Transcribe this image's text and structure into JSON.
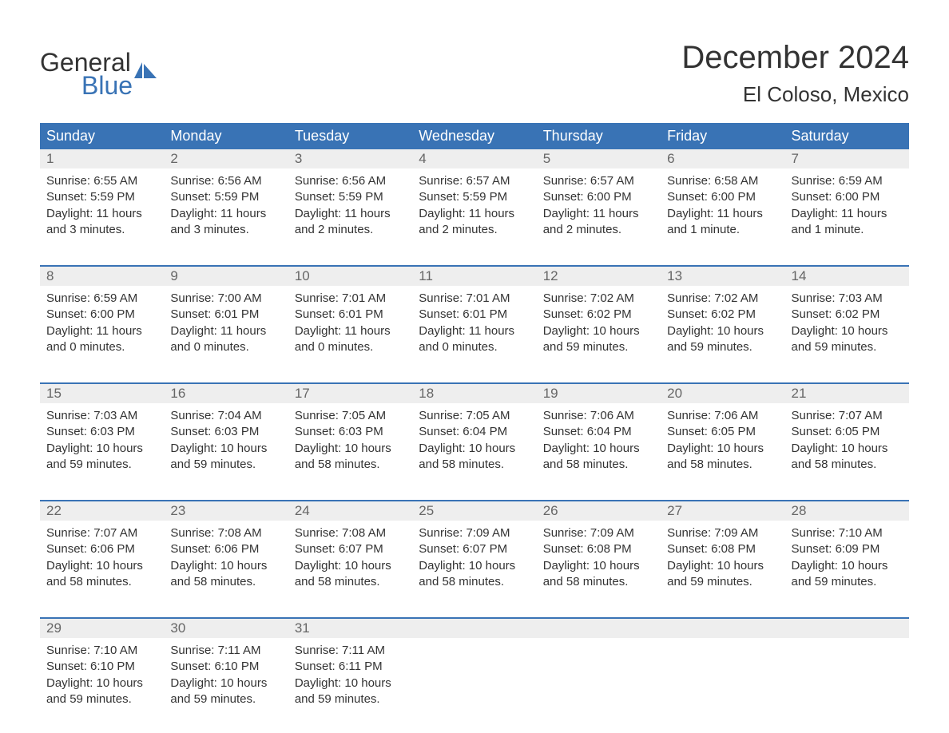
{
  "logo": {
    "text_top": "General",
    "text_bottom": "Blue",
    "top_color": "#333333",
    "bottom_color": "#3973b5",
    "shape_color": "#3973b5"
  },
  "title": "December 2024",
  "location": "El Coloso, Mexico",
  "colors": {
    "header_bg": "#3973b5",
    "header_text": "#ffffff",
    "daynum_bg": "#eeeeee",
    "daynum_text": "#666666",
    "body_text": "#333333",
    "row_border": "#3973b5",
    "background": "#ffffff"
  },
  "fonts": {
    "title_size_pt": 30,
    "location_size_pt": 20,
    "weekday_size_pt": 14,
    "daynum_size_pt": 13,
    "body_size_pt": 11
  },
  "weekdays": [
    "Sunday",
    "Monday",
    "Tuesday",
    "Wednesday",
    "Thursday",
    "Friday",
    "Saturday"
  ],
  "weeks": [
    [
      {
        "day": "1",
        "sunrise": "Sunrise: 6:55 AM",
        "sunset": "Sunset: 5:59 PM",
        "daylight1": "Daylight: 11 hours",
        "daylight2": "and 3 minutes."
      },
      {
        "day": "2",
        "sunrise": "Sunrise: 6:56 AM",
        "sunset": "Sunset: 5:59 PM",
        "daylight1": "Daylight: 11 hours",
        "daylight2": "and 3 minutes."
      },
      {
        "day": "3",
        "sunrise": "Sunrise: 6:56 AM",
        "sunset": "Sunset: 5:59 PM",
        "daylight1": "Daylight: 11 hours",
        "daylight2": "and 2 minutes."
      },
      {
        "day": "4",
        "sunrise": "Sunrise: 6:57 AM",
        "sunset": "Sunset: 5:59 PM",
        "daylight1": "Daylight: 11 hours",
        "daylight2": "and 2 minutes."
      },
      {
        "day": "5",
        "sunrise": "Sunrise: 6:57 AM",
        "sunset": "Sunset: 6:00 PM",
        "daylight1": "Daylight: 11 hours",
        "daylight2": "and 2 minutes."
      },
      {
        "day": "6",
        "sunrise": "Sunrise: 6:58 AM",
        "sunset": "Sunset: 6:00 PM",
        "daylight1": "Daylight: 11 hours",
        "daylight2": "and 1 minute."
      },
      {
        "day": "7",
        "sunrise": "Sunrise: 6:59 AM",
        "sunset": "Sunset: 6:00 PM",
        "daylight1": "Daylight: 11 hours",
        "daylight2": "and 1 minute."
      }
    ],
    [
      {
        "day": "8",
        "sunrise": "Sunrise: 6:59 AM",
        "sunset": "Sunset: 6:00 PM",
        "daylight1": "Daylight: 11 hours",
        "daylight2": "and 0 minutes."
      },
      {
        "day": "9",
        "sunrise": "Sunrise: 7:00 AM",
        "sunset": "Sunset: 6:01 PM",
        "daylight1": "Daylight: 11 hours",
        "daylight2": "and 0 minutes."
      },
      {
        "day": "10",
        "sunrise": "Sunrise: 7:01 AM",
        "sunset": "Sunset: 6:01 PM",
        "daylight1": "Daylight: 11 hours",
        "daylight2": "and 0 minutes."
      },
      {
        "day": "11",
        "sunrise": "Sunrise: 7:01 AM",
        "sunset": "Sunset: 6:01 PM",
        "daylight1": "Daylight: 11 hours",
        "daylight2": "and 0 minutes."
      },
      {
        "day": "12",
        "sunrise": "Sunrise: 7:02 AM",
        "sunset": "Sunset: 6:02 PM",
        "daylight1": "Daylight: 10 hours",
        "daylight2": "and 59 minutes."
      },
      {
        "day": "13",
        "sunrise": "Sunrise: 7:02 AM",
        "sunset": "Sunset: 6:02 PM",
        "daylight1": "Daylight: 10 hours",
        "daylight2": "and 59 minutes."
      },
      {
        "day": "14",
        "sunrise": "Sunrise: 7:03 AM",
        "sunset": "Sunset: 6:02 PM",
        "daylight1": "Daylight: 10 hours",
        "daylight2": "and 59 minutes."
      }
    ],
    [
      {
        "day": "15",
        "sunrise": "Sunrise: 7:03 AM",
        "sunset": "Sunset: 6:03 PM",
        "daylight1": "Daylight: 10 hours",
        "daylight2": "and 59 minutes."
      },
      {
        "day": "16",
        "sunrise": "Sunrise: 7:04 AM",
        "sunset": "Sunset: 6:03 PM",
        "daylight1": "Daylight: 10 hours",
        "daylight2": "and 59 minutes."
      },
      {
        "day": "17",
        "sunrise": "Sunrise: 7:05 AM",
        "sunset": "Sunset: 6:03 PM",
        "daylight1": "Daylight: 10 hours",
        "daylight2": "and 58 minutes."
      },
      {
        "day": "18",
        "sunrise": "Sunrise: 7:05 AM",
        "sunset": "Sunset: 6:04 PM",
        "daylight1": "Daylight: 10 hours",
        "daylight2": "and 58 minutes."
      },
      {
        "day": "19",
        "sunrise": "Sunrise: 7:06 AM",
        "sunset": "Sunset: 6:04 PM",
        "daylight1": "Daylight: 10 hours",
        "daylight2": "and 58 minutes."
      },
      {
        "day": "20",
        "sunrise": "Sunrise: 7:06 AM",
        "sunset": "Sunset: 6:05 PM",
        "daylight1": "Daylight: 10 hours",
        "daylight2": "and 58 minutes."
      },
      {
        "day": "21",
        "sunrise": "Sunrise: 7:07 AM",
        "sunset": "Sunset: 6:05 PM",
        "daylight1": "Daylight: 10 hours",
        "daylight2": "and 58 minutes."
      }
    ],
    [
      {
        "day": "22",
        "sunrise": "Sunrise: 7:07 AM",
        "sunset": "Sunset: 6:06 PM",
        "daylight1": "Daylight: 10 hours",
        "daylight2": "and 58 minutes."
      },
      {
        "day": "23",
        "sunrise": "Sunrise: 7:08 AM",
        "sunset": "Sunset: 6:06 PM",
        "daylight1": "Daylight: 10 hours",
        "daylight2": "and 58 minutes."
      },
      {
        "day": "24",
        "sunrise": "Sunrise: 7:08 AM",
        "sunset": "Sunset: 6:07 PM",
        "daylight1": "Daylight: 10 hours",
        "daylight2": "and 58 minutes."
      },
      {
        "day": "25",
        "sunrise": "Sunrise: 7:09 AM",
        "sunset": "Sunset: 6:07 PM",
        "daylight1": "Daylight: 10 hours",
        "daylight2": "and 58 minutes."
      },
      {
        "day": "26",
        "sunrise": "Sunrise: 7:09 AM",
        "sunset": "Sunset: 6:08 PM",
        "daylight1": "Daylight: 10 hours",
        "daylight2": "and 58 minutes."
      },
      {
        "day": "27",
        "sunrise": "Sunrise: 7:09 AM",
        "sunset": "Sunset: 6:08 PM",
        "daylight1": "Daylight: 10 hours",
        "daylight2": "and 59 minutes."
      },
      {
        "day": "28",
        "sunrise": "Sunrise: 7:10 AM",
        "sunset": "Sunset: 6:09 PM",
        "daylight1": "Daylight: 10 hours",
        "daylight2": "and 59 minutes."
      }
    ],
    [
      {
        "day": "29",
        "sunrise": "Sunrise: 7:10 AM",
        "sunset": "Sunset: 6:10 PM",
        "daylight1": "Daylight: 10 hours",
        "daylight2": "and 59 minutes."
      },
      {
        "day": "30",
        "sunrise": "Sunrise: 7:11 AM",
        "sunset": "Sunset: 6:10 PM",
        "daylight1": "Daylight: 10 hours",
        "daylight2": "and 59 minutes."
      },
      {
        "day": "31",
        "sunrise": "Sunrise: 7:11 AM",
        "sunset": "Sunset: 6:11 PM",
        "daylight1": "Daylight: 10 hours",
        "daylight2": "and 59 minutes."
      },
      {
        "empty": true
      },
      {
        "empty": true
      },
      {
        "empty": true
      },
      {
        "empty": true
      }
    ]
  ]
}
